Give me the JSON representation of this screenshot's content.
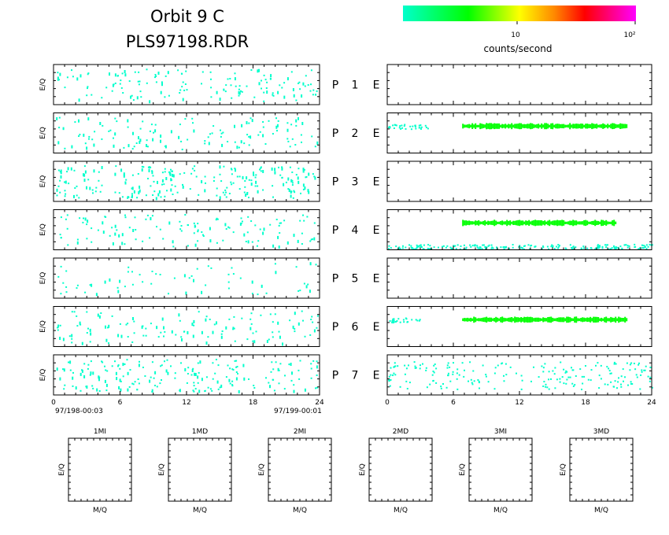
{
  "title_line1": "Orbit 9 C",
  "title_line2": "PLS97198.RDR",
  "colorbar": {
    "tick_labels": [
      "10",
      "10²"
    ],
    "label": "counts/second",
    "colors": [
      "#00ffcc",
      "#00ff00",
      "#ffff00",
      "#ff8800",
      "#ff0000",
      "#ff00ff"
    ]
  },
  "axis_ylabel": "E/Q",
  "rows": [
    {
      "letter_p": "P",
      "num": "1",
      "letter_e": "E"
    },
    {
      "letter_p": "P",
      "num": "2",
      "letter_e": "E"
    },
    {
      "letter_p": "P",
      "num": "3",
      "letter_e": "E"
    },
    {
      "letter_p": "P",
      "num": "4",
      "letter_e": "E"
    },
    {
      "letter_p": "P",
      "num": "5",
      "letter_e": "E"
    },
    {
      "letter_p": "P",
      "num": "6",
      "letter_e": "E"
    },
    {
      "letter_p": "P",
      "num": "7",
      "letter_e": "E"
    }
  ],
  "time_ticks": [
    "0",
    "6",
    "12",
    "18",
    "24"
  ],
  "time_start": "97/198-00:03",
  "time_end": "97/199-00:01",
  "mq_panels": [
    {
      "title": "1MI",
      "xlabel": "M/Q",
      "ylabel": "E/Q"
    },
    {
      "title": "1MD",
      "xlabel": "M/Q",
      "ylabel": "E/Q"
    },
    {
      "title": "2MI",
      "xlabel": "M/Q",
      "ylabel": "E/Q"
    },
    {
      "title": "2MD",
      "xlabel": "M/Q",
      "ylabel": "E/Q"
    },
    {
      "title": "3MI",
      "xlabel": "M/Q",
      "ylabel": "E/Q"
    },
    {
      "title": "3MD",
      "xlabel": "M/Q",
      "ylabel": "E/Q"
    }
  ],
  "chart_data": {
    "type": "heatmap",
    "x_range_hours": [
      0,
      24
    ],
    "colors": {
      "low": "#00ffcc",
      "mid": "#00ff00"
    },
    "left_panels_density": [
      0.35,
      0.3,
      0.55,
      0.3,
      0.15,
      0.3,
      0.45
    ],
    "right_panels": [
      {
        "row": 1,
        "bands": []
      },
      {
        "row": 2,
        "bands": [
          {
            "x": [
              0,
              3.8
            ],
            "level": "low"
          },
          {
            "x": [
              6.8,
              21.8
            ],
            "level": "mid"
          }
        ]
      },
      {
        "row": 3,
        "bands": []
      },
      {
        "row": 4,
        "bands": [
          {
            "x": [
              6.8,
              20.8
            ],
            "level": "mid"
          },
          {
            "x": [
              0,
              24
            ],
            "level": "low"
          }
        ]
      },
      {
        "row": 5,
        "bands": []
      },
      {
        "row": 6,
        "bands": [
          {
            "x": [
              0,
              3
            ],
            "level": "low"
          },
          {
            "x": [
              6.8,
              21.8
            ],
            "level": "mid"
          }
        ]
      },
      {
        "row": 7,
        "bands": [
          {
            "x": [
              0,
              24
            ],
            "level": "low"
          }
        ]
      }
    ]
  }
}
